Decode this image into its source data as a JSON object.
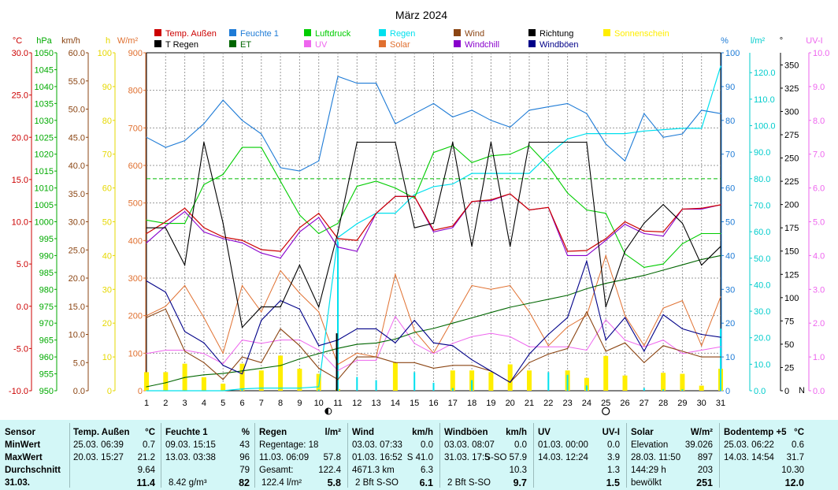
{
  "chart_data": {
    "type": "line",
    "title": "März 2024",
    "legend": [
      {
        "label": "Temp. Außen",
        "color": "#cc0000"
      },
      {
        "label": "Feuchte 1",
        "color": "#1e7bd6"
      },
      {
        "label": "Luftdruck",
        "color": "#00cc00"
      },
      {
        "label": "Regen",
        "color": "#00e0ee"
      },
      {
        "label": "Wind",
        "color": "#8b4513"
      },
      {
        "label": "Richtung",
        "color": "#000000"
      },
      {
        "label": "Sonnenschein",
        "color": "#ffee00"
      },
      {
        "label": "T Regen",
        "color": "#000000"
      },
      {
        "label": "ET",
        "color": "#006600"
      },
      {
        "label": "UV",
        "color": "#ee66ee"
      },
      {
        "label": "Solar",
        "color": "#e07030"
      },
      {
        "label": "Windchill",
        "color": "#8800cc"
      },
      {
        "label": "Windböen",
        "color": "#000088"
      }
    ],
    "axis_units": {
      "temp": "°C",
      "press": "hPa",
      "wind": "km/h",
      "sun": "h",
      "solar": "W/m²",
      "hum": "%",
      "rain": "l/m²",
      "dir": "°",
      "uv": "UV-I"
    },
    "axis_ticks": {
      "temp": [
        "30.0",
        "25.0",
        "20.0",
        "15.0",
        "10.0",
        "5.0",
        "0.0",
        "-5.0",
        "-10.0"
      ],
      "press": [
        "1050",
        "1045",
        "1040",
        "1035",
        "1030",
        "1025",
        "1020",
        "1015",
        "1010",
        "1005",
        "1000",
        "995",
        "990",
        "985",
        "980",
        "975",
        "970",
        "965",
        "960",
        "955",
        "950"
      ],
      "wind": [
        "60.0",
        "55.0",
        "50.0",
        "45.0",
        "40.0",
        "35.0",
        "30.0",
        "25.0",
        "20.0",
        "15.0",
        "10.0",
        "5.0",
        "0.0"
      ],
      "sun": [
        "100",
        "90",
        "80",
        "70",
        "60",
        "50",
        "40",
        "30",
        "20",
        "10",
        "0"
      ],
      "solar": [
        "900",
        "800",
        "700",
        "600",
        "500",
        "400",
        "300",
        "200",
        "100",
        "0"
      ],
      "hum": [
        "100",
        "90",
        "80",
        "70",
        "60",
        "50",
        "40",
        "30",
        "20",
        "10",
        "0"
      ],
      "rain": [
        "120.0",
        "110.0",
        "100.0",
        "90.0",
        "80.0",
        "70.0",
        "60.0",
        "50.0",
        "40.0",
        "30.0",
        "20.0",
        "10.0",
        "0.0"
      ],
      "dir": [
        "350",
        "325",
        "300",
        "275",
        "250",
        "225",
        "200",
        "175",
        "150",
        "125",
        "100",
        "75",
        "50",
        "25",
        "0"
      ],
      "dir_n_label": "N",
      "uv": [
        "10.0",
        "9.0",
        "8.0",
        "7.0",
        "6.0",
        "5.0",
        "4.0",
        "3.0",
        "2.0",
        "1.0",
        "0.0"
      ]
    },
    "x": [
      1,
      2,
      3,
      4,
      5,
      6,
      7,
      8,
      9,
      10,
      11,
      12,
      13,
      14,
      15,
      16,
      17,
      18,
      19,
      20,
      21,
      22,
      23,
      24,
      25,
      26,
      27,
      28,
      29,
      30,
      31
    ],
    "ylim_solar": [
      0,
      900
    ],
    "series": [
      {
        "name": "Temp. Außen",
        "unit": "°C",
        "color": "#cc0000",
        "values": [
          8.6,
          10,
          11.6,
          9.3,
          8.2,
          7.8,
          6.7,
          6.5,
          9.3,
          11,
          8,
          7.8,
          11,
          13,
          13,
          9,
          9.5,
          12.4,
          12.6,
          13.3,
          11.4,
          11.7,
          6.5,
          6.6,
          8,
          10,
          8.9,
          8.8,
          11.5,
          11.6,
          12
        ]
      },
      {
        "name": "Windchill",
        "unit": "°C",
        "color": "#8800cc",
        "values": [
          7.5,
          9.5,
          11.2,
          8.8,
          8,
          7.5,
          6.3,
          5.7,
          8.8,
          10.5,
          7,
          6.5,
          11,
          13,
          13,
          8.8,
          9.3,
          12.4,
          12.5,
          13.3,
          11.4,
          11.7,
          6,
          6,
          7.8,
          9.7,
          8.6,
          8.3,
          11.5,
          11.5,
          12
        ]
      },
      {
        "name": "Feuchte 1",
        "unit": "%",
        "color": "#1e7bd6",
        "values": [
          75,
          72,
          74,
          79,
          86,
          80,
          76,
          66,
          65,
          68,
          93,
          91,
          91,
          79,
          82,
          85,
          81,
          83,
          80,
          78,
          83,
          84,
          85,
          82,
          73,
          68,
          82,
          75,
          76,
          83,
          82
        ]
      },
      {
        "name": "Luftdruck",
        "unit": "hPa",
        "color": "#00cc00",
        "values": [
          1000.5,
          999.5,
          999.5,
          1011,
          1014,
          1022,
          1022,
          1012,
          1002,
          996.5,
          999.5,
          1010.5,
          1012,
          1010,
          1007,
          1020.5,
          1022.5,
          1017.5,
          1019.5,
          1020,
          1022.5,
          1016.5,
          1008.5,
          1003.5,
          1002.5,
          990.5,
          986.5,
          987.5,
          993.5,
          996.5,
          996.5
        ]
      },
      {
        "name": "Regen",
        "unit": "l/m²",
        "color": "#00e0ee",
        "values": [
          0,
          0,
          0,
          0,
          0,
          0.7,
          1,
          1,
          1,
          1.5,
          57.8,
          63,
          67,
          67,
          74,
          77,
          78,
          82,
          82,
          82,
          82,
          89,
          95,
          97,
          97,
          97,
          98,
          98.5,
          99,
          99,
          122.4
        ]
      },
      {
        "name": "ET",
        "unit": "l/m²",
        "color": "#006600",
        "values": [
          1.5,
          3,
          5,
          6,
          6.5,
          7.5,
          8.5,
          9.5,
          12,
          14,
          16,
          17.5,
          18,
          19.5,
          22,
          23.5,
          25.5,
          27.5,
          29.5,
          31.5,
          33,
          34.5,
          36,
          38.5,
          40.5,
          42,
          43.5,
          45.5,
          47.5,
          49.5,
          51
        ]
      },
      {
        "name": "Wind",
        "unit": "km/h",
        "color": "#8b4513",
        "values": [
          13,
          14.5,
          7,
          5,
          2,
          6,
          5,
          11,
          8,
          4,
          2,
          6,
          6,
          5,
          5,
          4,
          4.5,
          4.5,
          3.5,
          1.5,
          5,
          6.5,
          7.5,
          14,
          7,
          8.5,
          5,
          8,
          7,
          6,
          6
        ]
      },
      {
        "name": "Windböen",
        "unit": "km/h",
        "color": "#000088",
        "values": [
          19.5,
          17.5,
          10.5,
          8.5,
          4.5,
          3,
          12.5,
          16,
          14.5,
          8,
          9,
          11,
          11,
          8.5,
          12.5,
          8.5,
          8,
          5.5,
          3.5,
          1.5,
          6.5,
          10,
          13,
          23,
          9,
          13,
          7,
          13.5,
          11,
          10,
          9.5
        ]
      },
      {
        "name": "Solar",
        "unit": "W/m²",
        "color": "#e07030",
        "values": [
          200,
          225,
          280,
          195,
          100,
          280,
          210,
          320,
          260,
          210,
          70,
          100,
          90,
          310,
          160,
          100,
          190,
          280,
          270,
          280,
          210,
          120,
          170,
          200,
          360,
          200,
          120,
          220,
          240,
          120,
          250
        ]
      },
      {
        "name": "UV",
        "unit": "UV-I",
        "color": "#ee66ee",
        "values": [
          1.1,
          1.2,
          1.2,
          1.1,
          0.8,
          1.5,
          1.4,
          1.5,
          1.5,
          1.2,
          0.6,
          0.9,
          0.9,
          2.2,
          1.4,
          1.1,
          1.4,
          1.6,
          1.7,
          1.6,
          1.3,
          1.3,
          1.3,
          1.2,
          2.1,
          1.5,
          1.3,
          1.5,
          1.1,
          1.2,
          1.3
        ]
      },
      {
        "name": "Richtung",
        "unit": "°",
        "color": "#000000",
        "values": [
          175,
          175,
          135,
          267,
          180,
          68,
          90,
          90,
          135,
          90,
          170,
          267,
          267,
          267,
          175,
          180,
          267,
          155,
          267,
          155,
          267,
          267,
          267,
          267,
          90,
          150,
          180,
          200,
          180,
          135,
          155
        ]
      },
      {
        "name": "Sonnenschein",
        "unit": "h",
        "color": "#ffee00",
        "values": [
          5.5,
          5.5,
          8,
          4,
          2.1,
          8,
          6,
          10.4,
          6.5,
          5,
          0.5,
          0,
          0,
          8.4,
          0,
          0,
          6,
          6,
          5.5,
          7.8,
          6,
          0,
          6,
          3.8,
          10.3,
          4.5,
          0,
          5.3,
          5,
          1.5,
          6.5
        ]
      }
    ],
    "moon_phases": [
      {
        "day": 10.5,
        "phase": "new"
      },
      {
        "day": 25,
        "phase": "full"
      }
    ]
  },
  "table": {
    "headers": {
      "sensor": "Sensor",
      "temp": "Temp. Außen",
      "temp_unit": "°C",
      "hum": "Feuchte 1",
      "hum_unit": "%",
      "rain": "Regen",
      "rain_unit": "l/m²",
      "wind": "Wind",
      "wind_unit": "km/h",
      "gust": "Windböen",
      "gust_unit": "km/h",
      "uv": "UV",
      "uv_unit": "UV-I",
      "solar": "Solar",
      "solar_unit": "W/m²",
      "soil": "Bodentemp +5",
      "soil_unit": "°C"
    },
    "row_labels": {
      "min": "MinWert",
      "max": "MaxWert",
      "avg": "Durchschnitt",
      "date": "31.03."
    },
    "temp": {
      "min_date": "25.03. 06:39",
      "min": "0.7",
      "max_date": "20.03. 15:27",
      "max": "21.2",
      "avg": "9.64",
      "cur": "11.4"
    },
    "hum": {
      "min_date": "09.03. 15:15",
      "min": "43",
      "max_date": "13.03. 03:38",
      "max": "96",
      "avg": "79",
      "cur_extra": "8.42 g/m³",
      "cur": "82"
    },
    "rain": {
      "days": "Regentage: 18",
      "max_date": "11.03. 06:09",
      "max": "57.8",
      "total_label": "Gesamt:",
      "total": "122.4",
      "cur_extra": "122.4 l/m²",
      "cur": "5.8"
    },
    "wind": {
      "min_date": "03.03. 07:33",
      "min": "0.0",
      "max_date": "01.03. 16:52",
      "max": "S 41.0",
      "avg": "4671.3 km",
      "avg_val": "6.3",
      "cur_extra": "2 Bft S-SO",
      "cur": "6.1"
    },
    "gust": {
      "min_date": "03.03. 08:07",
      "min": "0.0",
      "max_date": "31.03. 17:5",
      "max": "S-SO 57.9",
      "avg": "10.3",
      "cur_extra": "2 Bft S-SO",
      "cur": "9.7"
    },
    "uv": {
      "min_date": "01.03. 00:00",
      "min": "0.0",
      "max_date": "14.03. 12:24",
      "max": "3.9",
      "avg": "1.3",
      "cur": "1.5"
    },
    "solar": {
      "min_label": "Elevation",
      "min": "39.026",
      "max_date": "28.03. 11:50",
      "max": "897",
      "avg_label": "144:29 h",
      "avg": "203",
      "cur_extra": "bewölkt",
      "cur": "251"
    },
    "soil": {
      "min_date": "25.03. 06:22",
      "min": "0.6",
      "max_date": "14.03. 14:54",
      "max": "31.7",
      "avg": "10.30",
      "cur": "12.0"
    }
  }
}
